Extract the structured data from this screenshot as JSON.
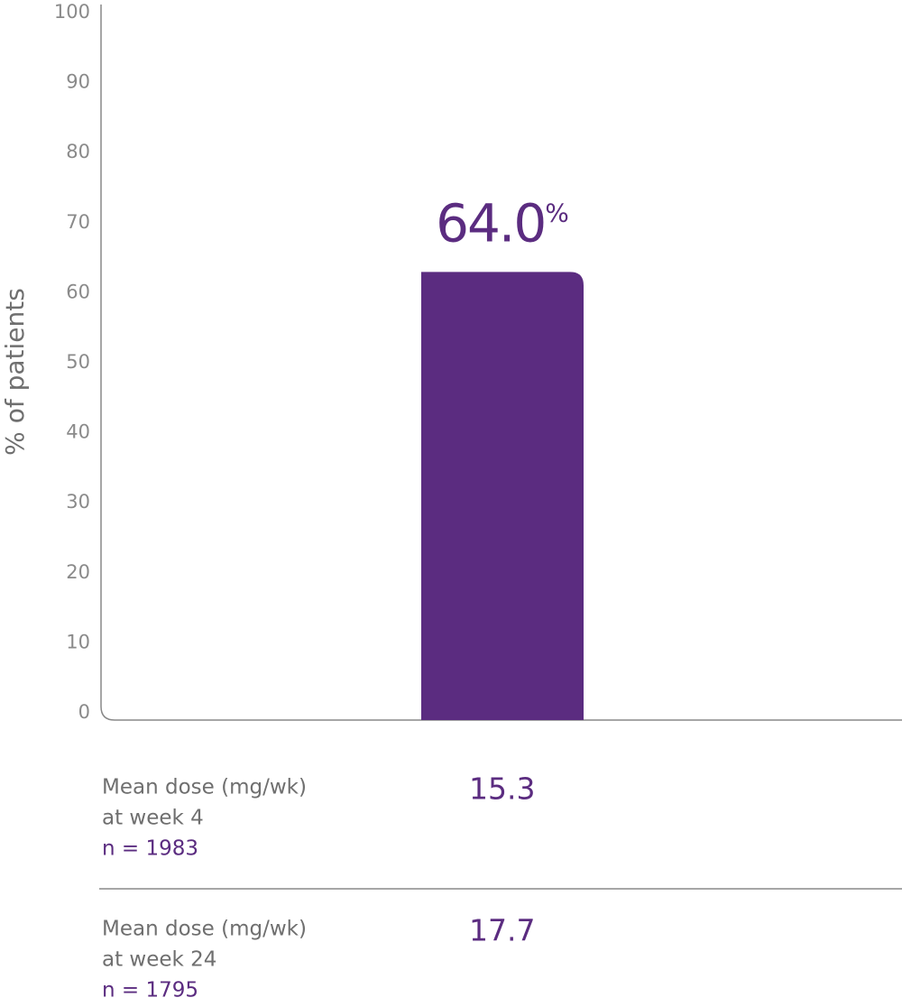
{
  "chart_data": {
    "type": "bar",
    "ylabel": "% of patients",
    "categories": [
      null
    ],
    "values": [
      64.0
    ],
    "value_labels": [
      "64.0%"
    ],
    "color": "#5b2c80",
    "ylim": [
      0,
      100
    ],
    "yticks": [
      0,
      10,
      20,
      30,
      40,
      50,
      60,
      70,
      80,
      90,
      100
    ],
    "grid": false
  },
  "table": {
    "rows": [
      {
        "label": [
          "Mean dose (mg/wk)",
          "at week 4"
        ],
        "n": "n = 1983",
        "value": "15.3"
      },
      {
        "label": [
          "Mean dose (mg/wk)",
          "at week 24"
        ],
        "n": "n = 1795",
        "value": "17.7"
      }
    ]
  }
}
